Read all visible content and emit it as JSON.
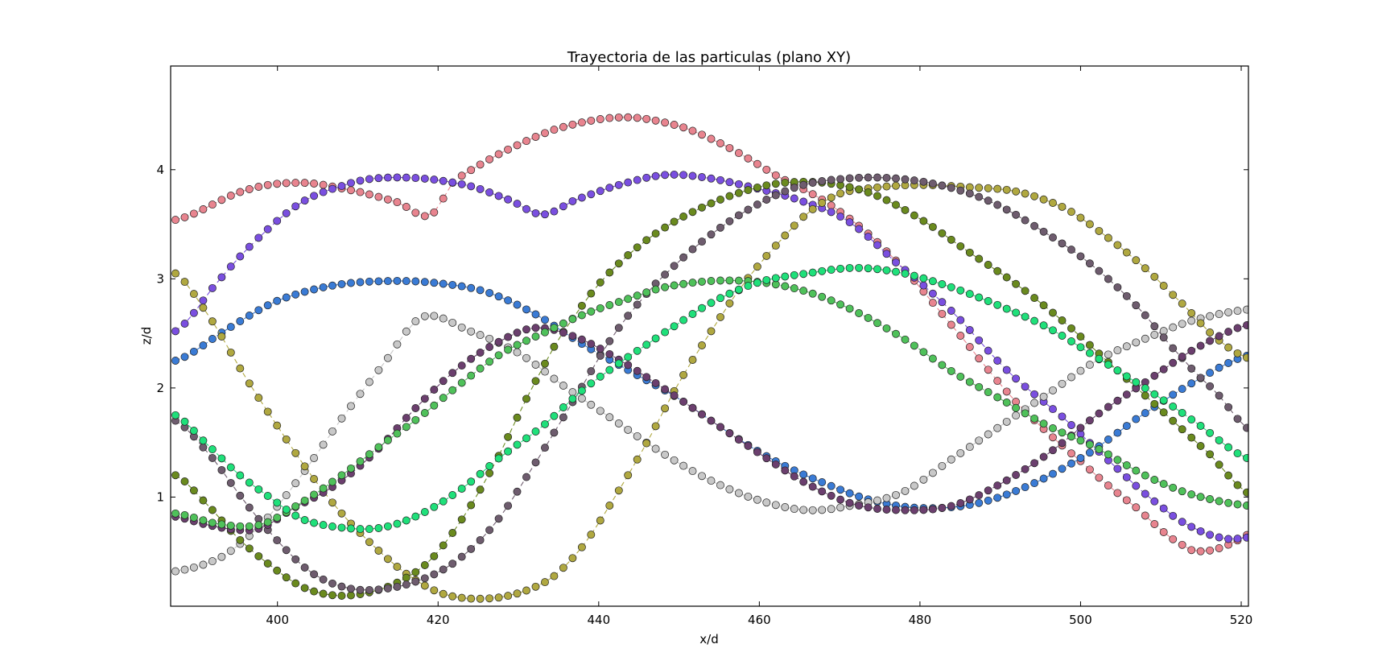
{
  "chart_data": {
    "type": "scatter",
    "title": "Trayectoria de las particulas (plano XY)",
    "xlabel": "x/d",
    "ylabel": "z/d",
    "xlim": [
      386.7,
      520.9
    ],
    "ylim": [
      0.0,
      4.95
    ],
    "xticks": [
      400,
      420,
      440,
      460,
      480,
      500,
      520
    ],
    "xtick_labels": [
      "400",
      "420",
      "440",
      "460",
      "480",
      "500",
      "520"
    ],
    "yticks": [
      1,
      2,
      3,
      4
    ],
    "ytick_labels": [
      "1",
      "2",
      "3",
      "4"
    ],
    "grid": false,
    "legend": "none",
    "marker": "circle",
    "line_style": "dashed",
    "x_step": 1.15,
    "series": [
      {
        "color": "#e8848f",
        "anchors": [
          [
            387.3,
            3.54
          ],
          [
            396,
            3.81
          ],
          [
            403,
            3.88
          ],
          [
            410,
            3.8
          ],
          [
            415,
            3.7
          ],
          [
            419,
            3.58
          ],
          [
            422,
            3.9
          ],
          [
            428,
            4.16
          ],
          [
            435,
            4.38
          ],
          [
            443,
            4.48
          ],
          [
            450,
            4.4
          ],
          [
            456,
            4.21
          ],
          [
            462,
            3.95
          ],
          [
            469,
            3.67
          ],
          [
            476,
            3.24
          ],
          [
            484,
            2.57
          ],
          [
            492,
            1.87
          ],
          [
            500,
            1.33
          ],
          [
            507,
            0.9
          ],
          [
            513,
            0.55
          ],
          [
            516,
            0.51
          ],
          [
            519,
            0.58
          ],
          [
            521,
            0.66
          ]
        ]
      },
      {
        "color": "#7a4fe0",
        "anchors": [
          [
            387.3,
            2.52
          ],
          [
            393,
            3.01
          ],
          [
            398,
            3.4
          ],
          [
            403,
            3.7
          ],
          [
            408,
            3.85
          ],
          [
            412,
            3.92
          ],
          [
            418,
            3.92
          ],
          [
            424,
            3.85
          ],
          [
            429,
            3.72
          ],
          [
            433,
            3.59
          ],
          [
            437,
            3.72
          ],
          [
            442,
            3.85
          ],
          [
            448,
            3.95
          ],
          [
            453,
            3.93
          ],
          [
            459,
            3.84
          ],
          [
            465,
            3.72
          ],
          [
            471,
            3.53
          ],
          [
            477,
            3.15
          ],
          [
            484,
            2.7
          ],
          [
            491,
            2.15
          ],
          [
            498,
            1.72
          ],
          [
            504,
            1.3
          ],
          [
            510,
            0.92
          ],
          [
            514,
            0.72
          ],
          [
            518,
            0.62
          ],
          [
            521,
            0.63
          ]
        ]
      },
      {
        "color": "#3a7bd5",
        "anchors": [
          [
            387.3,
            2.25
          ],
          [
            394,
            2.55
          ],
          [
            400,
            2.8
          ],
          [
            407,
            2.94
          ],
          [
            414,
            2.98
          ],
          [
            420,
            2.96
          ],
          [
            426,
            2.88
          ],
          [
            432,
            2.68
          ],
          [
            438,
            2.4
          ],
          [
            444,
            2.15
          ],
          [
            450,
            1.9
          ],
          [
            456,
            1.6
          ],
          [
            462,
            1.33
          ],
          [
            468,
            1.13
          ],
          [
            474,
            0.97
          ],
          [
            480,
            0.9
          ],
          [
            487,
            0.94
          ],
          [
            494,
            1.12
          ],
          [
            501,
            1.4
          ],
          [
            507,
            1.72
          ],
          [
            514,
            2.05
          ],
          [
            521,
            2.3
          ]
        ]
      },
      {
        "color": "#c8c8c8",
        "anchors": [
          [
            387.3,
            0.32
          ],
          [
            393,
            0.45
          ],
          [
            398,
            0.75
          ],
          [
            403,
            1.2
          ],
          [
            408,
            1.72
          ],
          [
            413,
            2.2
          ],
          [
            418,
            2.65
          ],
          [
            424,
            2.52
          ],
          [
            430,
            2.32
          ],
          [
            436,
            2.0
          ],
          [
            442,
            1.7
          ],
          [
            448,
            1.4
          ],
          [
            454,
            1.15
          ],
          [
            460,
            0.97
          ],
          [
            466,
            0.88
          ],
          [
            472,
            0.93
          ],
          [
            478,
            1.05
          ],
          [
            484,
            1.35
          ],
          [
            490,
            1.65
          ],
          [
            496,
            1.95
          ],
          [
            502,
            2.25
          ],
          [
            508,
            2.45
          ],
          [
            514,
            2.62
          ],
          [
            521,
            2.72
          ]
        ]
      },
      {
        "color": "#b0a840",
        "anchors": [
          [
            387.3,
            3.05
          ],
          [
            392,
            2.6
          ],
          [
            396,
            2.1
          ],
          [
            400,
            1.65
          ],
          [
            404,
            1.22
          ],
          [
            408,
            0.85
          ],
          [
            412,
            0.55
          ],
          [
            416,
            0.3
          ],
          [
            420,
            0.13
          ],
          [
            424,
            0.07
          ],
          [
            429,
            0.1
          ],
          [
            434,
            0.25
          ],
          [
            438,
            0.55
          ],
          [
            442,
            1.0
          ],
          [
            446,
            1.5
          ],
          [
            450,
            2.05
          ],
          [
            454,
            2.52
          ],
          [
            458,
            2.95
          ],
          [
            462,
            3.3
          ],
          [
            466,
            3.6
          ],
          [
            470,
            3.78
          ],
          [
            475,
            3.84
          ],
          [
            480,
            3.86
          ],
          [
            486,
            3.84
          ],
          [
            492,
            3.8
          ],
          [
            498,
            3.65
          ],
          [
            503,
            3.4
          ],
          [
            508,
            3.1
          ],
          [
            513,
            2.75
          ],
          [
            517,
            2.45
          ],
          [
            521,
            2.27
          ]
        ]
      },
      {
        "color": "#6a8a1e",
        "anchors": [
          [
            387.3,
            1.2
          ],
          [
            391,
            0.95
          ],
          [
            395,
            0.63
          ],
          [
            399,
            0.38
          ],
          [
            403,
            0.18
          ],
          [
            407,
            0.1
          ],
          [
            411,
            0.12
          ],
          [
            415,
            0.22
          ],
          [
            419,
            0.42
          ],
          [
            423,
            0.8
          ],
          [
            427,
            1.3
          ],
          [
            431,
            1.9
          ],
          [
            435,
            2.45
          ],
          [
            440,
            2.95
          ],
          [
            445,
            3.3
          ],
          [
            450,
            3.55
          ],
          [
            456,
            3.75
          ],
          [
            462,
            3.87
          ],
          [
            468,
            3.88
          ],
          [
            474,
            3.78
          ],
          [
            480,
            3.55
          ],
          [
            486,
            3.25
          ],
          [
            492,
            2.95
          ],
          [
            498,
            2.6
          ],
          [
            504,
            2.2
          ],
          [
            510,
            1.8
          ],
          [
            516,
            1.4
          ],
          [
            521,
            1.03
          ]
        ]
      },
      {
        "color": "#6e5c6e",
        "anchors": [
          [
            387.3,
            1.7
          ],
          [
            392,
            1.35
          ],
          [
            396,
            0.95
          ],
          [
            400,
            0.6
          ],
          [
            404,
            0.32
          ],
          [
            408,
            0.18
          ],
          [
            412,
            0.15
          ],
          [
            417,
            0.22
          ],
          [
            422,
            0.4
          ],
          [
            427,
            0.75
          ],
          [
            432,
            1.3
          ],
          [
            437,
            1.9
          ],
          [
            442,
            2.5
          ],
          [
            447,
            2.95
          ],
          [
            453,
            3.35
          ],
          [
            459,
            3.65
          ],
          [
            465,
            3.85
          ],
          [
            471,
            3.92
          ],
          [
            477,
            3.92
          ],
          [
            483,
            3.85
          ],
          [
            489,
            3.7
          ],
          [
            495,
            3.45
          ],
          [
            501,
            3.15
          ],
          [
            507,
            2.75
          ],
          [
            513,
            2.25
          ],
          [
            517,
            1.95
          ],
          [
            521,
            1.62
          ]
        ]
      },
      {
        "color": "#6b3f6e",
        "anchors": [
          [
            387.3,
            0.82
          ],
          [
            391,
            0.75
          ],
          [
            395,
            0.7
          ],
          [
            398,
            0.72
          ],
          [
            402,
            0.9
          ],
          [
            407,
            1.1
          ],
          [
            412,
            1.4
          ],
          [
            417,
            1.8
          ],
          [
            422,
            2.15
          ],
          [
            427,
            2.4
          ],
          [
            432,
            2.55
          ],
          [
            437,
            2.47
          ],
          [
            442,
            2.28
          ],
          [
            448,
            2.0
          ],
          [
            454,
            1.7
          ],
          [
            460,
            1.4
          ],
          [
            466,
            1.12
          ],
          [
            472,
            0.93
          ],
          [
            478,
            0.88
          ],
          [
            484,
            0.92
          ],
          [
            490,
            1.12
          ],
          [
            496,
            1.4
          ],
          [
            502,
            1.75
          ],
          [
            508,
            2.05
          ],
          [
            514,
            2.35
          ],
          [
            521,
            2.58
          ]
        ]
      },
      {
        "color": "#4fc15a",
        "anchors": [
          [
            387.3,
            0.85
          ],
          [
            393,
            0.75
          ],
          [
            398,
            0.75
          ],
          [
            403,
            0.95
          ],
          [
            408,
            1.2
          ],
          [
            413,
            1.48
          ],
          [
            418,
            1.75
          ],
          [
            423,
            2.05
          ],
          [
            428,
            2.32
          ],
          [
            433,
            2.5
          ],
          [
            438,
            2.67
          ],
          [
            443,
            2.8
          ],
          [
            448,
            2.92
          ],
          [
            454,
            2.98
          ],
          [
            460,
            2.97
          ],
          [
            466,
            2.88
          ],
          [
            472,
            2.7
          ],
          [
            478,
            2.45
          ],
          [
            484,
            2.15
          ],
          [
            490,
            1.9
          ],
          [
            496,
            1.65
          ],
          [
            502,
            1.45
          ],
          [
            508,
            1.2
          ],
          [
            514,
            1.02
          ],
          [
            521,
            0.92
          ]
        ]
      },
      {
        "color": "#1fe07a",
        "anchors": [
          [
            387.3,
            1.75
          ],
          [
            391,
            1.5
          ],
          [
            395,
            1.22
          ],
          [
            399,
            1.0
          ],
          [
            403,
            0.8
          ],
          [
            408,
            0.72
          ],
          [
            413,
            0.72
          ],
          [
            418,
            0.85
          ],
          [
            423,
            1.08
          ],
          [
            428,
            1.38
          ],
          [
            433,
            1.65
          ],
          [
            438,
            1.98
          ],
          [
            443,
            2.25
          ],
          [
            448,
            2.5
          ],
          [
            454,
            2.78
          ],
          [
            460,
            2.97
          ],
          [
            466,
            3.05
          ],
          [
            472,
            3.1
          ],
          [
            478,
            3.05
          ],
          [
            484,
            2.92
          ],
          [
            490,
            2.75
          ],
          [
            496,
            2.55
          ],
          [
            502,
            2.28
          ],
          [
            508,
            2.0
          ],
          [
            514,
            1.7
          ],
          [
            521,
            1.35
          ]
        ]
      }
    ]
  }
}
